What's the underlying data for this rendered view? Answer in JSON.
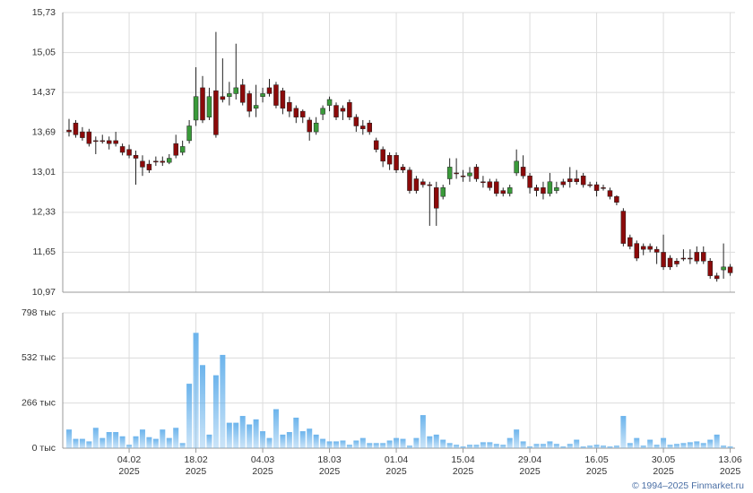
{
  "chart_data": {
    "type": "candlestick",
    "xlim": [
      -0.94,
      99.73
    ],
    "xticks": [
      {
        "value": 9,
        "label": "04.02"
      },
      {
        "value": 19,
        "label": "18.02"
      },
      {
        "value": 29,
        "label": "04.03"
      },
      {
        "value": 39,
        "label": "18.03"
      },
      {
        "value": 49,
        "label": "01.04"
      },
      {
        "value": 59,
        "label": "15.04"
      },
      {
        "value": 69,
        "label": "29.04"
      },
      {
        "value": 79,
        "label": "16.05"
      },
      {
        "value": 89,
        "label": "30.05"
      },
      {
        "value": 99,
        "label": "13.06"
      }
    ],
    "x_year": "2025",
    "ylim": [
      10.97,
      15.73
    ],
    "yticks": [
      {
        "value": 10.97,
        "label": "10,97"
      },
      {
        "value": 11.65,
        "label": "11,65"
      },
      {
        "value": 12.33,
        "label": "12,33"
      },
      {
        "value": 13.01,
        "label": "13,01"
      },
      {
        "value": 13.69,
        "label": "13,69"
      },
      {
        "value": 14.37,
        "label": "14,37"
      },
      {
        "value": 15.05,
        "label": "15,05"
      },
      {
        "value": 15.73,
        "label": "15,73"
      }
    ],
    "grid": true,
    "up_color": "#3a9a3a",
    "down_color": "#8b0a0a",
    "open": [
      13.73,
      13.85,
      13.7,
      13.7,
      13.55,
      13.55,
      13.55,
      13.55,
      13.45,
      13.4,
      13.3,
      13.2,
      13.15,
      13.2,
      13.2,
      13.18,
      13.5,
      13.35,
      13.55,
      13.9,
      14.45,
      13.95,
      14.4,
      14.3,
      14.3,
      14.35,
      14.5,
      14.35,
      14.1,
      14.3,
      14.45,
      14.5,
      14.4,
      14.2,
      14.1,
      14.05,
      13.9,
      13.7,
      14.0,
      14.15,
      14.15,
      14.1,
      14.2,
      13.95,
      13.8,
      13.85,
      13.55,
      13.4,
      13.3,
      13.3,
      13.1,
      13.05,
      12.9,
      12.85,
      12.8,
      12.75,
      12.6,
      12.9,
      13.0,
      12.95,
      12.95,
      13.1,
      12.85,
      12.85,
      12.85,
      12.7,
      12.65,
      13.0,
      13.1,
      12.95,
      12.75,
      12.75,
      12.65,
      12.7,
      12.85,
      12.9,
      12.9,
      12.95,
      12.8,
      12.8,
      12.75,
      12.7,
      12.6,
      12.35,
      11.9,
      11.8,
      11.75,
      11.75,
      11.7,
      11.65,
      11.55,
      11.5,
      11.55,
      11.55,
      11.65,
      11.65,
      11.5,
      11.25,
      11.35,
      11.4
    ],
    "high": [
      13.92,
      13.9,
      13.78,
      13.75,
      13.62,
      13.65,
      13.62,
      13.7,
      13.5,
      13.48,
      13.38,
      13.3,
      13.22,
      13.28,
      13.28,
      13.32,
      13.65,
      13.55,
      13.9,
      14.8,
      14.65,
      14.45,
      15.4,
      14.95,
      14.55,
      15.2,
      14.6,
      14.4,
      14.5,
      14.45,
      14.6,
      14.55,
      14.45,
      14.3,
      14.15,
      14.08,
      13.95,
      13.95,
      14.15,
      14.3,
      14.2,
      14.15,
      14.25,
      14.0,
      13.9,
      13.9,
      13.6,
      13.45,
      13.35,
      13.35,
      13.15,
      13.1,
      12.95,
      12.9,
      12.85,
      12.85,
      12.8,
      13.25,
      13.25,
      13.05,
      13.1,
      13.15,
      12.95,
      12.9,
      12.9,
      12.75,
      12.8,
      13.4,
      13.3,
      13.0,
      12.8,
      12.85,
      13.0,
      12.85,
      12.9,
      13.1,
      13.05,
      13.0,
      12.85,
      12.85,
      12.8,
      12.75,
      12.62,
      12.4,
      11.95,
      11.85,
      11.8,
      11.8,
      11.75,
      11.95,
      11.6,
      11.55,
      11.7,
      11.7,
      11.75,
      11.75,
      11.55,
      11.3,
      11.8,
      11.45
    ],
    "low": [
      13.62,
      13.6,
      13.55,
      13.45,
      13.32,
      13.5,
      13.4,
      13.45,
      13.3,
      13.25,
      12.8,
      12.95,
      13.0,
      13.12,
      13.12,
      13.15,
      13.25,
      13.3,
      13.5,
      13.8,
      13.85,
      13.9,
      13.6,
      14.2,
      14.15,
      14.25,
      14.15,
      13.95,
      13.95,
      14.2,
      14.3,
      14.1,
      14.0,
      13.95,
      13.85,
      13.85,
      13.55,
      13.65,
      13.9,
      14.05,
      13.9,
      13.9,
      13.9,
      13.7,
      13.65,
      13.65,
      13.35,
      13.1,
      13.05,
      13.0,
      13.0,
      12.65,
      12.65,
      12.75,
      12.1,
      12.1,
      12.55,
      12.8,
      12.9,
      12.85,
      12.85,
      12.85,
      12.75,
      12.7,
      12.6,
      12.6,
      12.6,
      12.95,
      12.9,
      12.65,
      12.6,
      12.55,
      12.6,
      12.65,
      12.75,
      12.75,
      12.8,
      12.75,
      12.75,
      12.6,
      12.7,
      12.55,
      12.45,
      11.75,
      11.7,
      11.5,
      11.6,
      11.65,
      11.45,
      11.35,
      11.35,
      11.4,
      11.5,
      11.45,
      11.45,
      11.45,
      11.2,
      11.15,
      11.2,
      11.25
    ],
    "close": [
      13.7,
      13.65,
      13.6,
      13.5,
      13.55,
      13.55,
      13.5,
      13.5,
      13.35,
      13.3,
      13.25,
      13.1,
      13.05,
      13.2,
      13.18,
      13.25,
      13.3,
      13.45,
      13.8,
      14.3,
      13.9,
      14.3,
      13.65,
      14.25,
      14.35,
      14.45,
      14.2,
      14.05,
      14.15,
      14.35,
      14.35,
      14.15,
      14.1,
      14.05,
      13.95,
      13.95,
      13.7,
      13.85,
      14.1,
      14.25,
      13.95,
      14.05,
      13.95,
      13.8,
      13.75,
      13.7,
      13.4,
      13.2,
      13.15,
      13.05,
      13.05,
      12.7,
      12.7,
      12.8,
      12.8,
      12.4,
      12.75,
      13.1,
      13.0,
      12.95,
      13.0,
      12.9,
      12.85,
      12.75,
      12.65,
      12.65,
      12.75,
      13.2,
      12.95,
      12.75,
      12.7,
      12.65,
      12.85,
      12.75,
      12.8,
      12.85,
      12.85,
      12.8,
      12.8,
      12.7,
      12.75,
      12.6,
      12.5,
      11.8,
      11.75,
      11.55,
      11.7,
      11.7,
      11.65,
      11.4,
      11.4,
      11.45,
      11.55,
      11.55,
      11.5,
      11.5,
      11.25,
      11.2,
      11.4,
      11.3
    ],
    "volume": {
      "color": "#6cb4ec",
      "ylim": [
        0,
        798
      ],
      "yticks": [
        {
          "value": 0,
          "label": "0 тыс"
        },
        {
          "value": 266,
          "label": "266 тыс"
        },
        {
          "value": 532,
          "label": "532 тыс"
        },
        {
          "value": 798,
          "label": "798 тыс"
        }
      ],
      "values": [
        110,
        55,
        55,
        40,
        120,
        60,
        95,
        95,
        70,
        20,
        70,
        110,
        65,
        55,
        110,
        60,
        120,
        30,
        380,
        680,
        490,
        80,
        430,
        550,
        150,
        150,
        190,
        140,
        170,
        100,
        60,
        230,
        80,
        95,
        180,
        100,
        115,
        80,
        55,
        40,
        40,
        45,
        20,
        45,
        60,
        30,
        30,
        30,
        45,
        60,
        55,
        15,
        60,
        195,
        70,
        80,
        50,
        30,
        20,
        10,
        20,
        20,
        35,
        35,
        25,
        20,
        60,
        110,
        40,
        10,
        25,
        25,
        40,
        25,
        10,
        25,
        50,
        10,
        15,
        20,
        15,
        10,
        15,
        190,
        30,
        60,
        15,
        50,
        20,
        60,
        20,
        25,
        30,
        35,
        40,
        30,
        50,
        80,
        15,
        10
      ]
    },
    "source": "© 1994–2025 Finmarket.ru"
  }
}
